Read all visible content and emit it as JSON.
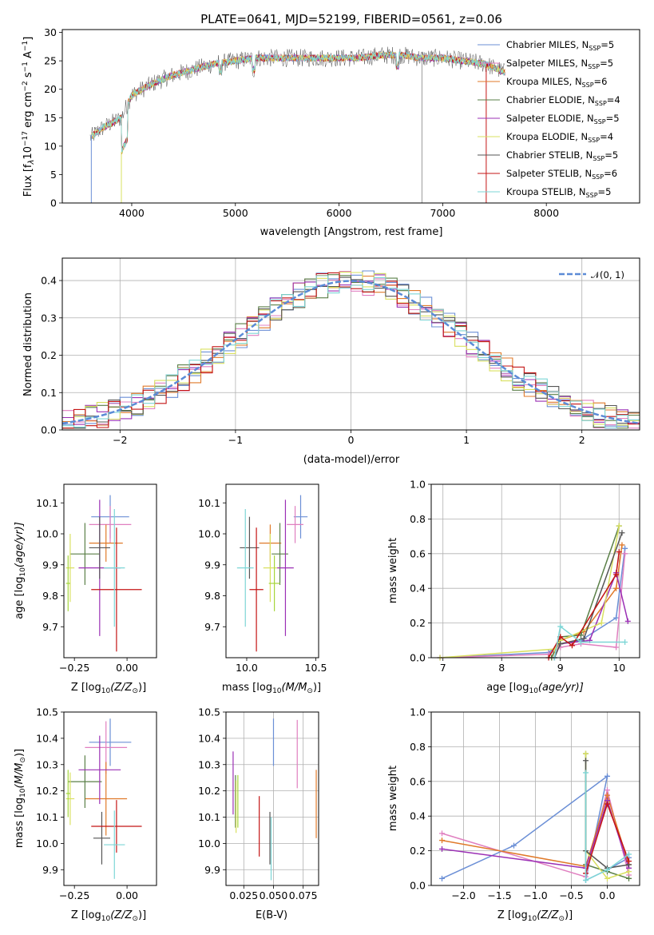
{
  "figure": {
    "title": "PLATE=0641, MJD=52199, FIBERID=0561, z=0.06"
  },
  "colors": [
    "#6b8fd6",
    "#e07fc0",
    "#e07a2a",
    "#5a7f47",
    "#9b30b5",
    "#d9e060",
    "#555555",
    "#c41414",
    "#7dd6d6",
    "#a6d63c"
  ],
  "chart_data": [
    {
      "type": "line",
      "id": "spectrum",
      "xlabel": "wavelength [Angstrom, rest frame]",
      "ylabel": "Flux [f_λ10^-17 erg cm^-2 s^-1 A^-1]",
      "ylabel_parts": {
        "a": "Flux [f",
        "b": "λ",
        "c": "10",
        "d": "−17",
        "e": " erg cm",
        "f": "−2",
        "g": " s",
        "h": "−1",
        "i": " A",
        "j": "−1",
        "k": "]"
      },
      "xlim": [
        3330,
        8900
      ],
      "ylim": [
        0,
        30.5
      ],
      "xticks": [
        "4000",
        "5000",
        "6000",
        "7000",
        "8000"
      ],
      "yticks": [
        "0",
        "5",
        "10",
        "15",
        "20",
        "25",
        "30"
      ],
      "legend_position": "top-right",
      "series": [
        {
          "name": "Chabrier MILES, N_SSP=5",
          "label": "Chabrier MILES, N",
          "sub": "SSP",
          "suffix": "=5"
        },
        {
          "name": "Salpeter MILES, N_SSP=5",
          "label": "Salpeter MILES, N",
          "sub": "SSP",
          "suffix": "=5"
        },
        {
          "name": "Kroupa MILES, N_SSP=6",
          "label": "Kroupa MILES, N",
          "sub": "SSP",
          "suffix": "=6"
        },
        {
          "name": "Chabrier ELODIE, N_SSP=4",
          "label": "Chabrier ELODIE, N",
          "sub": "SSP",
          "suffix": "=4"
        },
        {
          "name": "Salpeter ELODIE, N_SSP=5",
          "label": "Salpeter ELODIE, N",
          "sub": "SSP",
          "suffix": "=5"
        },
        {
          "name": "Kroupa ELODIE, N_SSP=4",
          "label": "Kroupa ELODIE, N",
          "sub": "SSP",
          "suffix": "=4"
        },
        {
          "name": "Chabrier STELIB, N_SSP=5",
          "label": "Chabrier STELIB, N",
          "sub": "SSP",
          "suffix": "=5"
        },
        {
          "name": "Salpeter STELIB, N_SSP=6",
          "label": "Salpeter STELIB, N",
          "sub": "SSP",
          "suffix": "=6"
        },
        {
          "name": "Kroupa STELIB, N_SSP=5",
          "label": "Kroupa STELIB, N",
          "sub": "SSP",
          "suffix": "=5"
        }
      ],
      "continuum": {
        "x": [
          3600,
          3700,
          3800,
          3900,
          4000,
          4100,
          4200,
          4400,
          4600,
          4800,
          5000,
          5200,
          5400,
          5600,
          5800,
          6000,
          6200,
          6400,
          6600,
          6800,
          7000,
          7200,
          7400,
          7600
        ],
        "y": [
          11.5,
          13,
          14,
          15,
          19,
          20,
          21,
          22.5,
          23.5,
          24.5,
          25,
          25.5,
          25.5,
          25.5,
          25.5,
          25.5,
          25.5,
          26,
          26,
          25.5,
          25.5,
          25,
          24.5,
          23
        ]
      }
    },
    {
      "type": "bar",
      "id": "residuals",
      "xlabel": "(data-model)/error",
      "ylabel": "Normed distribution",
      "xlim": [
        -2.5,
        2.5
      ],
      "ylim": [
        0,
        0.46
      ],
      "xticks": [
        "−2",
        "−1",
        "0",
        "1",
        "2"
      ],
      "yticks": [
        "0.0",
        "0.1",
        "0.2",
        "0.3",
        "0.4"
      ],
      "bin_width": 0.1,
      "legend": "𝒩(0, 1)",
      "legend_position": "top-right"
    },
    {
      "type": "scatter",
      "id": "age-vs-Z",
      "xlabel": "Z [log10(Z/Z⊙)]",
      "xlabel_parts": {
        "a": "Z [log",
        "b": "10",
        "c": "(Z/Z",
        "d": "⊙",
        "e": ")]"
      },
      "ylabel": "age  [log10(age/yr)]",
      "ylabel_parts": {
        "a": "age  [log",
        "b": "10",
        "c": "(age/yr)]"
      },
      "xlim": [
        -0.3,
        0.14
      ],
      "ylim": [
        9.6,
        10.16
      ],
      "xticks": [
        "−0.25",
        "0.00"
      ],
      "yticks": [
        "9.7",
        "9.8",
        "9.9",
        "10.0",
        "10.1"
      ],
      "points": [
        {
          "x": -0.08,
          "y": 10.055,
          "xerr": 0.09,
          "yerr": 0.07
        },
        {
          "x": -0.08,
          "y": 10.03,
          "xerr": 0.1,
          "yerr": 0.06
        },
        {
          "x": -0.1,
          "y": 9.97,
          "xerr": 0.08,
          "yerr": 0.06
        },
        {
          "x": -0.2,
          "y": 9.935,
          "xerr": 0.07,
          "yerr": 0.1
        },
        {
          "x": -0.13,
          "y": 9.89,
          "xerr": 0.1,
          "yerr": 0.22
        },
        {
          "x": -0.27,
          "y": 9.89,
          "xerr": 0.02,
          "yerr": 0.11
        },
        {
          "x": -0.13,
          "y": 9.955,
          "xerr": 0.05,
          "yerr": 0.1
        },
        {
          "x": -0.05,
          "y": 9.82,
          "xerr": 0.12,
          "yerr": 0.2
        },
        {
          "x": -0.06,
          "y": 9.89,
          "xerr": 0.05,
          "yerr": 0.19
        },
        {
          "x": -0.28,
          "y": 9.84,
          "xerr": 0.01,
          "yerr": 0.09
        }
      ]
    },
    {
      "type": "scatter",
      "id": "age-vs-mass",
      "xlabel": "mass [log10(M/M⊙)]",
      "xlabel_parts": {
        "a": "mass [log",
        "b": "10",
        "c": "(M/M",
        "d": "⊙",
        "e": ")]"
      },
      "ylabel": "",
      "xlim": [
        9.85,
        10.52
      ],
      "ylim": [
        9.6,
        10.16
      ],
      "xticks": [
        "10.0",
        "10.5"
      ],
      "yticks": [
        "9.7",
        "9.8",
        "9.9",
        "10.0",
        "10.1"
      ],
      "points": [
        {
          "x": 10.39,
          "y": 10.055,
          "xerr": 0.05,
          "yerr": 0.07
        },
        {
          "x": 10.35,
          "y": 10.03,
          "xerr": 0.06,
          "yerr": 0.06
        },
        {
          "x": 10.17,
          "y": 9.97,
          "xerr": 0.08,
          "yerr": 0.06
        },
        {
          "x": 10.24,
          "y": 9.935,
          "xerr": 0.06,
          "yerr": 0.1
        },
        {
          "x": 10.28,
          "y": 9.89,
          "xerr": 0.06,
          "yerr": 0.22
        },
        {
          "x": 10.17,
          "y": 9.89,
          "xerr": 0.05,
          "yerr": 0.11
        },
        {
          "x": 10.02,
          "y": 9.955,
          "xerr": 0.07,
          "yerr": 0.1
        },
        {
          "x": 10.07,
          "y": 9.82,
          "xerr": 0.05,
          "yerr": 0.2
        },
        {
          "x": 9.99,
          "y": 9.89,
          "xerr": 0.06,
          "yerr": 0.19
        },
        {
          "x": 10.2,
          "y": 9.84,
          "xerr": 0.04,
          "yerr": 0.09
        }
      ]
    },
    {
      "type": "line",
      "id": "mass-weight-vs-age",
      "xlabel": "age  [log10(age/yr)]",
      "xlabel_parts": {
        "a": "age  [log",
        "b": "10",
        "c": "(age/yr)]"
      },
      "ylabel": "mass weight",
      "xlim": [
        6.8,
        10.35
      ],
      "ylim": [
        0,
        1.0
      ],
      "xticks": [
        "7",
        "8",
        "9",
        "10"
      ],
      "yticks": [
        "0.0",
        "0.2",
        "0.4",
        "0.6",
        "0.8",
        "1.0"
      ],
      "series": [
        {
          "x": [
            6.95,
            8.8,
            9.0,
            9.35,
            9.95,
            10.1
          ],
          "y": [
            0.0,
            0.03,
            0.08,
            0.1,
            0.23,
            0.63
          ]
        },
        {
          "x": [
            6.95,
            8.8,
            9.0,
            9.35,
            9.95,
            10.1
          ],
          "y": [
            0.0,
            0.02,
            0.06,
            0.08,
            0.06,
            0.6
          ]
        },
        {
          "x": [
            8.85,
            9.0,
            9.4,
            9.95,
            10.05
          ],
          "y": [
            0.0,
            0.1,
            0.15,
            0.4,
            0.65
          ]
        },
        {
          "x": [
            8.85,
            9.0,
            9.35,
            10.0
          ],
          "y": [
            0.0,
            0.12,
            0.13,
            0.76
          ]
        },
        {
          "x": [
            8.9,
            9.0,
            9.5,
            9.95,
            10.15
          ],
          "y": [
            0.0,
            0.08,
            0.1,
            0.49,
            0.21
          ]
        },
        {
          "x": [
            6.95,
            8.9,
            9.0,
            9.7,
            10.0
          ],
          "y": [
            0.0,
            0.05,
            0.1,
            0.2,
            0.76
          ]
        },
        {
          "x": [
            8.9,
            9.0,
            9.4,
            10.05
          ],
          "y": [
            0.0,
            0.08,
            0.11,
            0.72
          ]
        },
        {
          "x": [
            8.8,
            9.0,
            9.2,
            9.95,
            10.0
          ],
          "y": [
            0.0,
            0.12,
            0.07,
            0.48,
            0.61
          ]
        },
        {
          "x": [
            8.9,
            9.0,
            9.35,
            10.1
          ],
          "y": [
            0.0,
            0.18,
            0.09,
            0.09
          ]
        }
      ]
    },
    {
      "type": "scatter",
      "id": "mass-vs-Z",
      "xlabel": "Z [log10(Z/Z⊙)]",
      "xlabel_parts": {
        "a": "Z [log",
        "b": "10",
        "c": "(Z/Z",
        "d": "⊙",
        "e": ")]"
      },
      "ylabel": "mass [log10(M/M⊙)]",
      "ylabel_parts": {
        "a": "mass [log",
        "b": "10",
        "c": "(M/M",
        "d": "⊙",
        "e": ")]"
      },
      "xlim": [
        -0.3,
        0.14
      ],
      "ylim": [
        9.84,
        10.5
      ],
      "xticks": [
        "−0.25",
        "0.00"
      ],
      "yticks": [
        "9.9",
        "10.0",
        "10.1",
        "10.2",
        "10.3",
        "10.4",
        "10.5"
      ],
      "points": [
        {
          "x": -0.08,
          "y": 10.385,
          "xerr": 0.1,
          "yerr": 0.09
        },
        {
          "x": -0.1,
          "y": 10.365,
          "xerr": 0.1,
          "yerr": 0.1
        },
        {
          "x": -0.1,
          "y": 10.17,
          "xerr": 0.1,
          "yerr": 0.14
        },
        {
          "x": -0.2,
          "y": 10.235,
          "xerr": 0.08,
          "yerr": 0.1
        },
        {
          "x": -0.13,
          "y": 10.28,
          "xerr": 0.1,
          "yerr": 0.13
        },
        {
          "x": -0.27,
          "y": 10.17,
          "xerr": 0.02,
          "yerr": 0.1
        },
        {
          "x": -0.12,
          "y": 10.02,
          "xerr": 0.04,
          "yerr": 0.1
        },
        {
          "x": -0.05,
          "y": 10.065,
          "xerr": 0.12,
          "yerr": 0.1
        },
        {
          "x": -0.06,
          "y": 9.995,
          "xerr": 0.05,
          "yerr": 0.13
        },
        {
          "x": -0.28,
          "y": 10.19,
          "xerr": 0.01,
          "yerr": 0.09
        }
      ]
    },
    {
      "type": "scatter",
      "id": "mass-vs-ebv",
      "xlabel": "E(B-V)",
      "ylabel": "",
      "xlim": [
        0.01,
        0.088
      ],
      "ylim": [
        9.84,
        10.5
      ],
      "xticks": [
        "0.025",
        "0.050",
        "0.075"
      ],
      "yticks": [
        "9.9",
        "10.0",
        "10.1",
        "10.2",
        "10.3",
        "10.4",
        "10.5"
      ],
      "points": [
        {
          "x": 0.05,
          "y": 10.385,
          "yerr": 0.09
        },
        {
          "x": 0.07,
          "y": 10.34,
          "yerr": 0.13
        },
        {
          "x": 0.086,
          "y": 10.15,
          "yerr": 0.13
        },
        {
          "x": 0.018,
          "y": 10.16,
          "yerr": 0.1
        },
        {
          "x": 0.016,
          "y": 10.23,
          "yerr": 0.12
        },
        {
          "x": 0.0185,
          "y": 10.14,
          "yerr": 0.1
        },
        {
          "x": 0.047,
          "y": 10.02,
          "yerr": 0.1
        },
        {
          "x": 0.038,
          "y": 10.065,
          "yerr": 0.115
        },
        {
          "x": 0.048,
          "y": 9.98,
          "yerr": 0.12
        },
        {
          "x": 0.02,
          "y": 10.16,
          "yerr": 0.1
        }
      ]
    },
    {
      "type": "line",
      "id": "mass-weight-vs-Z",
      "xlabel": "Z [log10(Z/Z⊙)]",
      "xlabel_parts": {
        "a": "Z [log",
        "b": "10",
        "c": "(Z/Z",
        "d": "⊙",
        "e": ")]"
      },
      "ylabel": "mass weight",
      "xlim": [
        -2.45,
        0.45
      ],
      "ylim": [
        0,
        1.0
      ],
      "xticks": [
        "−2.0",
        "−1.5",
        "−1.0",
        "−0.5",
        "0.0"
      ],
      "yticks": [
        "0.0",
        "0.2",
        "0.4",
        "0.6",
        "0.8",
        "1.0"
      ],
      "series": [
        {
          "x": [
            -2.3,
            -1.3,
            0.0,
            -0.3,
            0.0,
            0.3
          ],
          "y": [
            0.04,
            0.23,
            0.63,
            0.03,
            0.09,
            0.16
          ]
        },
        {
          "x": [
            -2.3,
            -0.3,
            0.0,
            0.3
          ],
          "y": [
            0.3,
            0.05,
            0.55,
            0.06
          ]
        },
        {
          "x": [
            -2.3,
            -0.3,
            0.0,
            0.3
          ],
          "y": [
            0.26,
            0.11,
            0.52,
            0.12
          ]
        },
        {
          "x": [
            -0.3,
            -0.3,
            0.0,
            0.3
          ],
          "y": [
            0.76,
            0.12,
            0.08,
            0.04
          ]
        },
        {
          "x": [
            -2.3,
            -0.3,
            0.0,
            0.3
          ],
          "y": [
            0.21,
            0.1,
            0.49,
            0.1
          ]
        },
        {
          "x": [
            -0.3,
            -0.3,
            0.0,
            0.3
          ],
          "y": [
            0.76,
            0.2,
            0.04,
            0.08
          ]
        },
        {
          "x": [
            -0.3,
            -0.3,
            0.0,
            0.3
          ],
          "y": [
            0.72,
            0.2,
            0.1,
            0.12
          ]
        },
        {
          "x": [
            -0.3,
            0.0,
            0.3
          ],
          "y": [
            0.07,
            0.47,
            0.14
          ]
        },
        {
          "x": [
            -0.3,
            -0.3,
            0.0,
            0.3
          ],
          "y": [
            0.65,
            0.03,
            0.09,
            0.18
          ]
        }
      ]
    }
  ]
}
